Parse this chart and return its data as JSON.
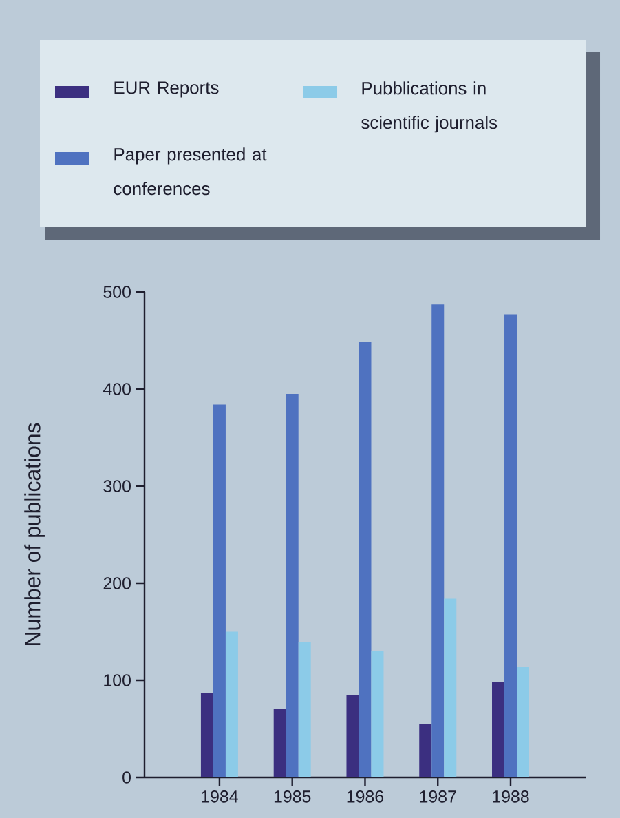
{
  "chart_data": {
    "type": "bar",
    "ylabel": "Number of publications",
    "categories": [
      "1984",
      "1985",
      "1986",
      "1987",
      "1988"
    ],
    "series": [
      {
        "name": "EUR Reports",
        "color": "#3b2f80",
        "values": [
          87,
          71,
          85,
          55,
          98
        ]
      },
      {
        "name": "Paper presented at conferences",
        "color": "#4f72c0",
        "values": [
          384,
          395,
          449,
          487,
          477
        ]
      },
      {
        "name": "Pubblications in scientific journals",
        "color": "#8ccbe8",
        "values": [
          150,
          139,
          130,
          184,
          114
        ]
      }
    ],
    "ylim": [
      0,
      500
    ],
    "yticks": [
      0,
      100,
      200,
      300,
      400,
      500
    ],
    "grid": false,
    "legend": "top"
  }
}
